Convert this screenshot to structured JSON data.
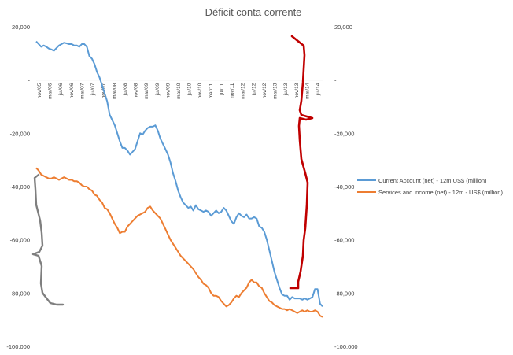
{
  "chart_data": {
    "type": "line",
    "title": "Déficit conta corrente",
    "y_left": {
      "min": -100000,
      "max": 20000,
      "ticks": [
        "20,000",
        "-",
        "-20,000",
        "-40,000",
        "-60,000",
        "-80,000",
        "-100,000"
      ]
    },
    "y_right": {
      "min": -100000,
      "max": 20000,
      "ticks": [
        "20,000",
        "-",
        "-20,000",
        "-40,000",
        "-60,000",
        "-80,000",
        "-100,000"
      ]
    },
    "x_labels": [
      "nov/05",
      "mar/06",
      "jul/06",
      "nov/06",
      "mar/07",
      "jul/07",
      "nov/07",
      "mar/08",
      "jul/08",
      "nov/08",
      "mar/09",
      "jul/09",
      "nov/09",
      "mar/10",
      "jul/10",
      "nov/10",
      "mar/11",
      "jul/11",
      "nov/11",
      "mar/12",
      "jul/12",
      "nov/12",
      "mar/13",
      "jul/13",
      "nov/13",
      "mar/14",
      "jul/14"
    ],
    "legend_position": "right",
    "series": [
      {
        "name": "Current Account (net) - 12m US$ (million)",
        "color": "#5B9BD5",
        "values": [
          14500,
          13500,
          12500,
          13000,
          12500,
          11800,
          11500,
          11000,
          12000,
          13000,
          13500,
          14000,
          13800,
          13500,
          13500,
          13000,
          13000,
          12500,
          13500,
          13500,
          12500,
          9000,
          8000,
          6000,
          3000,
          1000,
          -2000,
          -5000,
          -8000,
          -13000,
          -15000,
          -17000,
          -20000,
          -23000,
          -25500,
          -25500,
          -26500,
          -28000,
          -27000,
          -26000,
          -23000,
          -20000,
          -20500,
          -19000,
          -18000,
          -17500,
          -17500,
          -17000,
          -19000,
          -22000,
          -24000,
          -26000,
          -28000,
          -31000,
          -35000,
          -38000,
          -41500,
          -44000,
          -46000,
          -47000,
          -48000,
          -47500,
          -49000,
          -47000,
          -48500,
          -49000,
          -49500,
          -49000,
          -49500,
          -51000,
          -50000,
          -49000,
          -50000,
          -49500,
          -48000,
          -49000,
          -51000,
          -53000,
          -54000,
          -51500,
          -50000,
          -51000,
          -51500,
          -50500,
          -52000,
          -52000,
          -51500,
          -52000,
          -55000,
          -55500,
          -57000,
          -60000,
          -64000,
          -68000,
          -72000,
          -75000,
          -78000,
          -80500,
          -81000,
          -81000,
          -82500,
          -81500,
          -82000,
          -82000,
          -82000,
          -82500,
          -82000,
          -82500,
          -82000,
          -81500,
          -78500,
          -78500,
          -84000,
          -85000
        ]
      },
      {
        "name": "Services and income (net) - 12m - US$ (million)",
        "color": "#ED7D31",
        "values": [
          -33000,
          -34000,
          -35500,
          -36000,
          -36500,
          -37000,
          -37000,
          -36500,
          -37000,
          -37500,
          -37000,
          -36500,
          -37000,
          -37500,
          -37500,
          -38000,
          -38000,
          -38500,
          -39500,
          -40000,
          -40000,
          -41000,
          -41500,
          -43000,
          -43500,
          -45000,
          -46000,
          -48000,
          -48500,
          -50000,
          -52000,
          -54000,
          -55500,
          -57500,
          -57000,
          -57000,
          -55000,
          -54000,
          -53000,
          -52000,
          -51000,
          -50500,
          -50000,
          -49500,
          -48000,
          -47500,
          -49000,
          -50000,
          -51000,
          -52000,
          -54000,
          -56000,
          -58000,
          -60000,
          -61500,
          -63000,
          -64500,
          -66000,
          -67000,
          -68000,
          -69000,
          -70000,
          -71000,
          -72500,
          -74000,
          -75000,
          -76500,
          -77000,
          -78000,
          -80000,
          -81000,
          -81000,
          -81500,
          -83000,
          -84000,
          -85000,
          -84500,
          -83500,
          -82000,
          -81000,
          -81500,
          -80000,
          -79000,
          -78000,
          -76000,
          -75000,
          -76000,
          -76000,
          -77500,
          -78000,
          -80000,
          -81500,
          -83000,
          -83500,
          -84500,
          -85000,
          -85500,
          -86000,
          -86000,
          -86500,
          -86000,
          -86500,
          -87000,
          -87500,
          -87000,
          -86500,
          -87000,
          -86500,
          -87000,
          -87000,
          -86500,
          -87000,
          -88500,
          -89000
        ]
      }
    ]
  },
  "annotations": {
    "red_curve_color": "#C00000",
    "gray_curve_color": "#7F7F7F"
  }
}
